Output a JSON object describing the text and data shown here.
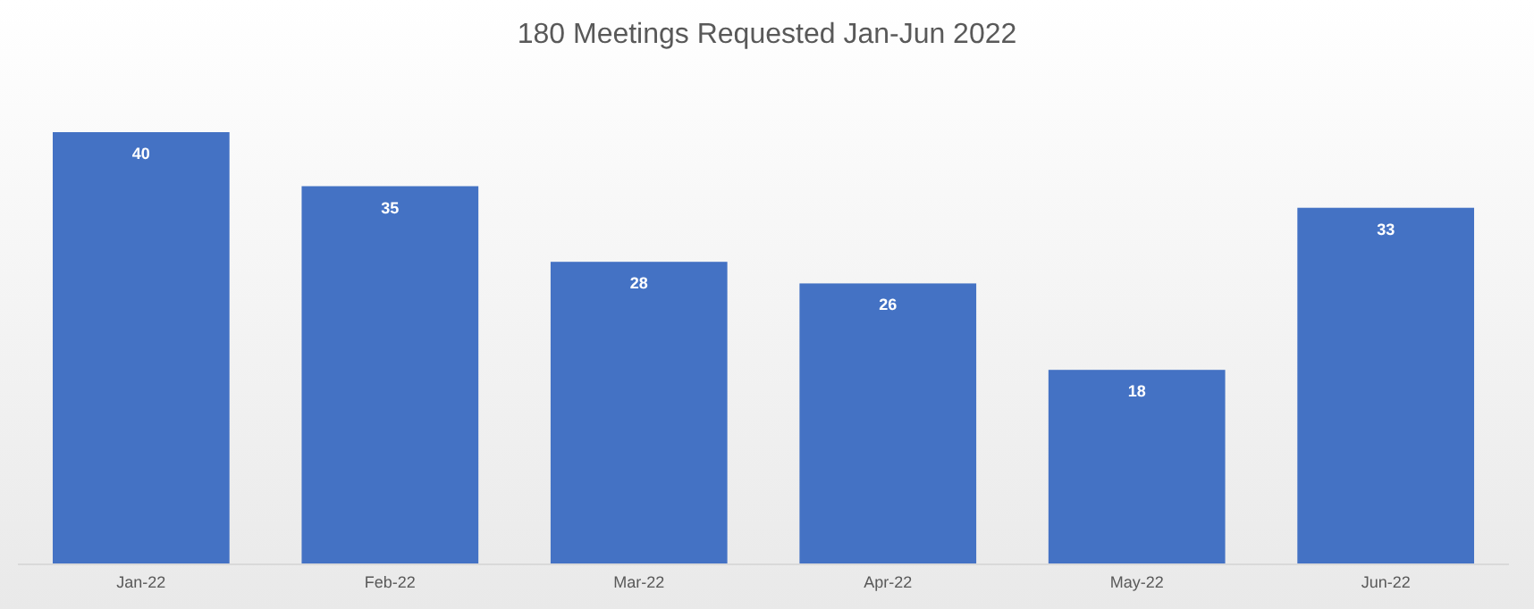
{
  "chart_data": {
    "type": "bar",
    "title": "180 Meetings Requested Jan-Jun 2022",
    "categories": [
      "Jan-22",
      "Feb-22",
      "Mar-22",
      "Apr-22",
      "May-22",
      "Jun-22"
    ],
    "values": [
      40,
      35,
      28,
      26,
      18,
      33
    ],
    "color": "#4472c4",
    "data_labels": true
  }
}
